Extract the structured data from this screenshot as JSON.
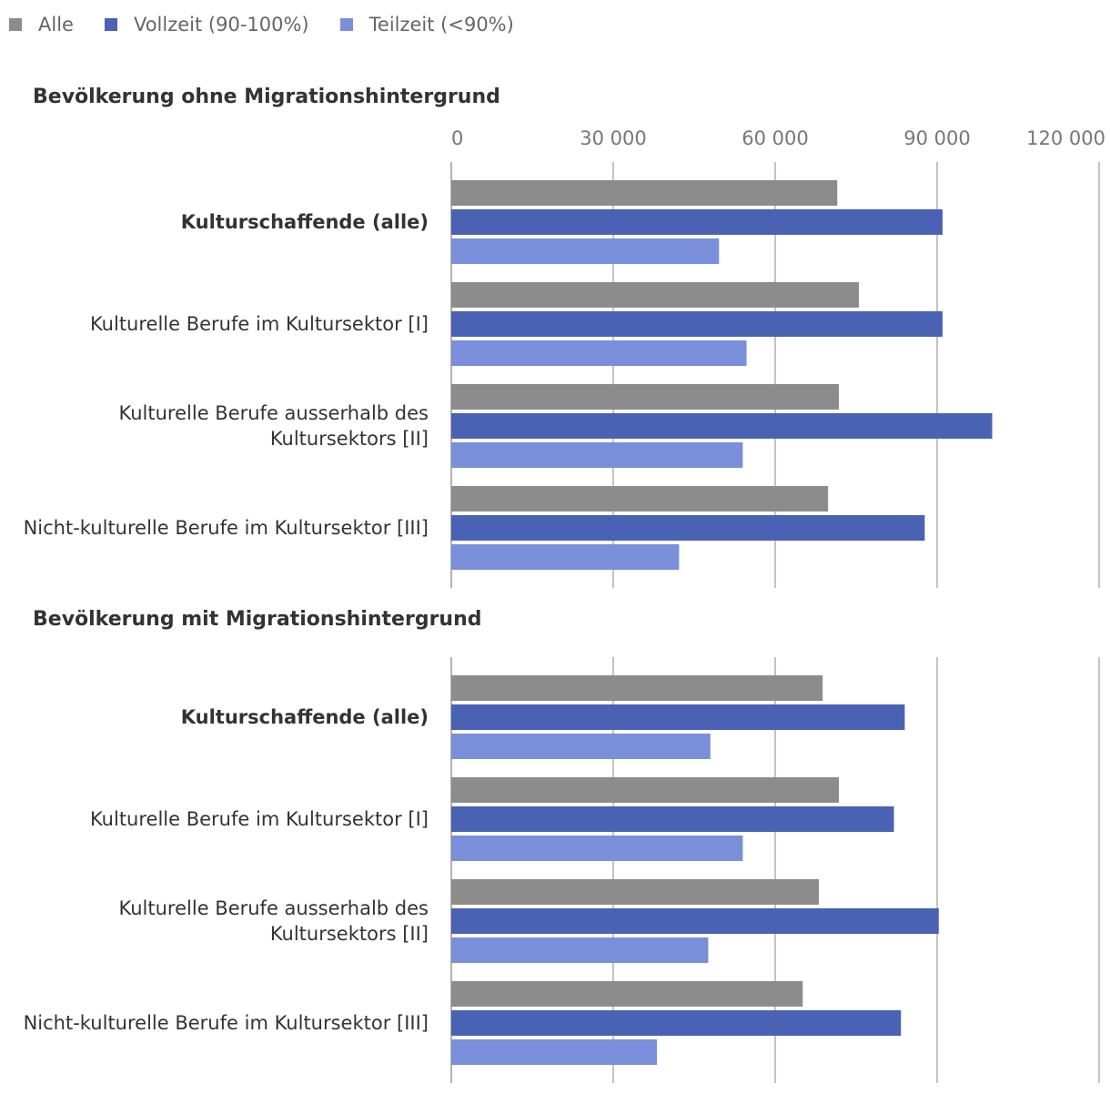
{
  "chart_data": {
    "type": "bar",
    "orientation": "horizontal",
    "legend": {
      "position": "top-left",
      "items": [
        {
          "label": "Alle",
          "color": "#8c8c8c"
        },
        {
          "label": "Vollzeit (90-100%)",
          "color": "#4a62b3"
        },
        {
          "label": "Teilzeit (<90%)",
          "color": "#7a8fd9"
        }
      ]
    },
    "x_axis": {
      "min": 0,
      "max": 120000,
      "ticks": [
        0,
        30000,
        60000,
        90000,
        120000
      ],
      "tick_labels": [
        "0",
        "30 000",
        "60 000",
        "90 000",
        "120 000"
      ],
      "grid": true
    },
    "panels": [
      {
        "title": "Bevölkerung ohne Migrationshintergrund",
        "categories": [
          {
            "label": "Kulturschaffende (alle)",
            "bold": true
          },
          {
            "label": "Kulturelle Berufe im Kultursektor [I]",
            "bold": false
          },
          {
            "label": "Kulturelle Berufe ausserhalb des Kultursektors [II]",
            "bold": false
          },
          {
            "label": "Nicht-kulturelle Berufe im Kultursektor [III]",
            "bold": false
          }
        ],
        "series": [
          {
            "name": "Alle",
            "values": [
              71500,
              75500,
              71800,
              69800
            ]
          },
          {
            "name": "Vollzeit (90-100%)",
            "values": [
              91000,
              91000,
              100200,
              87700
            ]
          },
          {
            "name": "Teilzeit (<90%)",
            "values": [
              49600,
              54700,
              54000,
              42200
            ]
          }
        ]
      },
      {
        "title": "Bevölkerung mit Migrationshintergrund",
        "categories": [
          {
            "label": "Kulturschaffende (alle)",
            "bold": true
          },
          {
            "label": "Kulturelle Berufe im Kultursektor [I]",
            "bold": false
          },
          {
            "label": "Kulturelle Berufe ausserhalb des Kultursektors [II]",
            "bold": false
          },
          {
            "label": "Nicht-kulturelle Berufe im Kultursektor [III]",
            "bold": false
          }
        ],
        "series": [
          {
            "name": "Alle",
            "values": [
              68800,
              71800,
              68100,
              65100
            ]
          },
          {
            "name": "Vollzeit (90-100%)",
            "values": [
              84000,
              82000,
              90300,
              83300
            ]
          },
          {
            "name": "Teilzeit (<90%)",
            "values": [
              48000,
              54000,
              47600,
              38100
            ]
          }
        ]
      }
    ]
  }
}
